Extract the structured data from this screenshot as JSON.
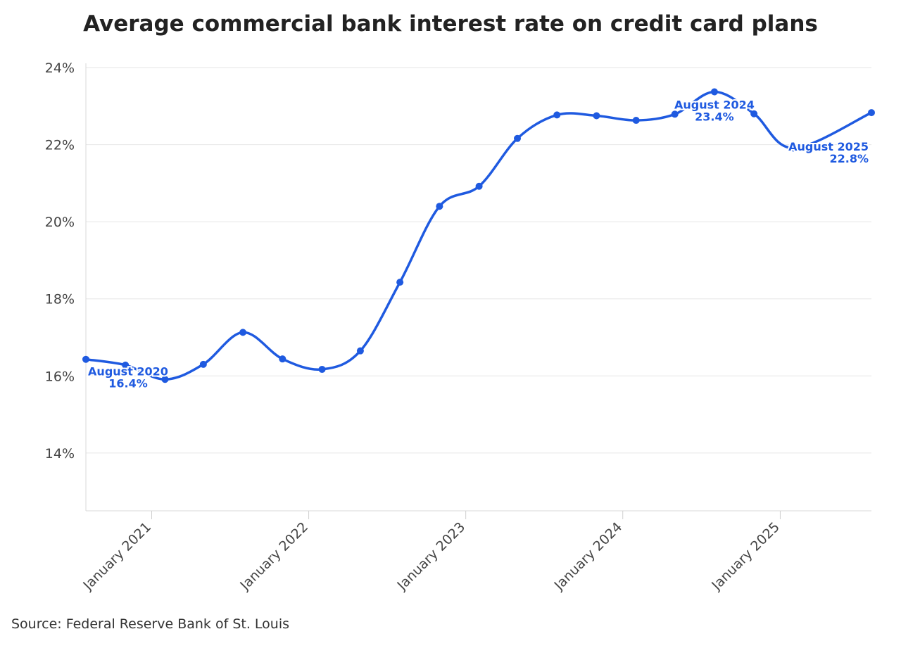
{
  "chart_data": {
    "type": "line",
    "title": "Average commercial bank interest rate on credit card plans",
    "source": "Source: Federal Reserve Bank of St. Louis",
    "xlabel": "",
    "ylabel": "",
    "ylim": [
      12.5,
      24
    ],
    "yticks": [
      14,
      16,
      18,
      20,
      22,
      24
    ],
    "ytick_suffix": "%",
    "xlim": [
      "2020-08-01",
      "2025-08-01"
    ],
    "xticks": [
      {
        "date": "2021-01-01",
        "label": "January 2021"
      },
      {
        "date": "2022-01-01",
        "label": "January 2022"
      },
      {
        "date": "2023-01-01",
        "label": "January 2023"
      },
      {
        "date": "2024-01-01",
        "label": "January 2024"
      },
      {
        "date": "2025-01-01",
        "label": "January 2025"
      }
    ],
    "grid": true,
    "legend": "none",
    "color": "#1f5ae0",
    "x": [
      "2020-08-01",
      "2020-11-01",
      "2021-02-01",
      "2021-05-01",
      "2021-08-01",
      "2021-11-01",
      "2022-02-01",
      "2022-05-01",
      "2022-08-01",
      "2022-11-01",
      "2023-02-01",
      "2023-05-01",
      "2023-08-01",
      "2023-11-01",
      "2024-02-01",
      "2024-05-01",
      "2024-08-01",
      "2024-11-01",
      "2025-02-01",
      "2025-08-01"
    ],
    "y": [
      16.43,
      16.28,
      15.91,
      16.3,
      17.13,
      16.44,
      16.17,
      16.65,
      18.43,
      20.4,
      20.92,
      22.16,
      22.77,
      22.75,
      22.63,
      22.79,
      23.37,
      22.8,
      21.91,
      22.83
    ],
    "annotations": [
      {
        "date": "2020-08-01",
        "line1": "August 2020",
        "line2": "16.4%"
      },
      {
        "date": "2024-08-01",
        "line1": "August 2024",
        "line2": "23.4%"
      },
      {
        "date": "2025-08-01",
        "line1": "August 2025",
        "line2": "22.8%"
      }
    ]
  }
}
